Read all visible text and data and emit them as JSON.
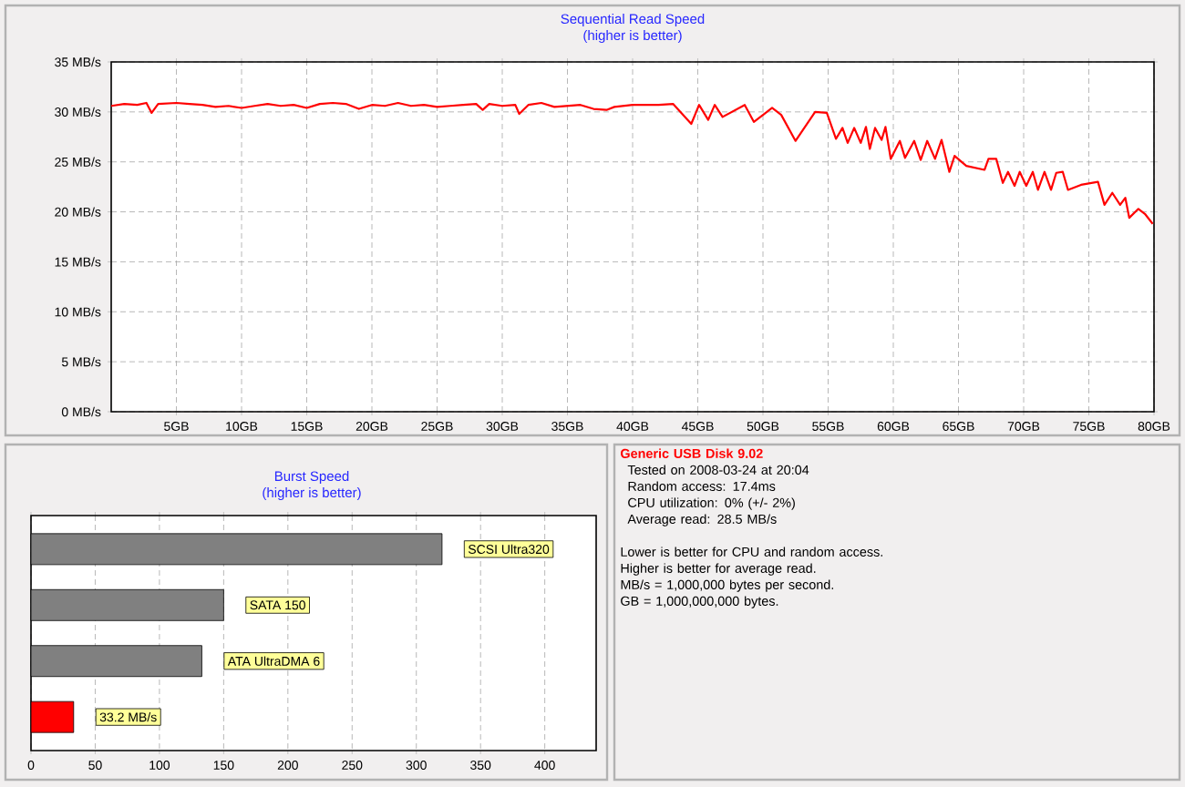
{
  "chart_data": [
    {
      "type": "line",
      "title": "Sequential Read Speed",
      "subtitle": "(higher is better)",
      "x": [
        0,
        1,
        2,
        2.7,
        3.1,
        3.6,
        5,
        6,
        7,
        8,
        9,
        10,
        11,
        12,
        13,
        14,
        15,
        16,
        17,
        18,
        19,
        20,
        21,
        22,
        23,
        24,
        25,
        26,
        27,
        28,
        28.5,
        29,
        30,
        31,
        31.3,
        32,
        33,
        34,
        35,
        36,
        37,
        38,
        38.6,
        40,
        42,
        43.1,
        44.5,
        45.1,
        45.8,
        46.3,
        46.9,
        48.6,
        49.3,
        50.3,
        50.7,
        51.4,
        52.5,
        54.0,
        54.9,
        55.6,
        56.1,
        56.5,
        57.0,
        57.5,
        57.9,
        58.2,
        58.6,
        59.1,
        59.4,
        59.8,
        60.5,
        60.9,
        61.6,
        62.1,
        62.6,
        63.2,
        63.7,
        64.3,
        64.7,
        65.6,
        67.0,
        67.3,
        67.9,
        68.4,
        68.8,
        69.3,
        69.7,
        70.2,
        70.7,
        71.1,
        71.6,
        72.1,
        72.5,
        73.0,
        73.4,
        74.4,
        75.7,
        76.2,
        76.8,
        77.4,
        77.8,
        78.1,
        78.8,
        79.3,
        79.9
      ],
      "series": [
        {
          "color": "#ff0000",
          "values": [
            30.6,
            30.8,
            30.7,
            30.9,
            29.9,
            30.8,
            30.9,
            30.8,
            30.7,
            30.5,
            30.6,
            30.4,
            30.6,
            30.8,
            30.6,
            30.7,
            30.4,
            30.8,
            30.9,
            30.8,
            30.3,
            30.7,
            30.6,
            30.9,
            30.6,
            30.7,
            30.5,
            30.6,
            30.7,
            30.8,
            30.2,
            30.8,
            30.6,
            30.7,
            29.8,
            30.7,
            30.9,
            30.5,
            30.6,
            30.7,
            30.3,
            30.2,
            30.5,
            30.7,
            30.7,
            30.8,
            28.8,
            30.7,
            29.2,
            30.7,
            29.5,
            30.7,
            29.0,
            30.0,
            30.4,
            29.7,
            27.1,
            30.0,
            29.9,
            27.3,
            28.4,
            26.9,
            28.4,
            26.9,
            28.5,
            26.3,
            28.4,
            27.2,
            28.5,
            25.3,
            27.1,
            25.4,
            27.1,
            25.2,
            27.1,
            25.3,
            27.2,
            24.0,
            25.6,
            24.6,
            24.2,
            25.3,
            25.3,
            22.9,
            24.0,
            22.6,
            24.0,
            22.6,
            24.0,
            22.2,
            24.0,
            22.2,
            23.9,
            24.0,
            22.2,
            22.7,
            23.0,
            20.7,
            21.9,
            20.7,
            21.4,
            19.4,
            20.3,
            19.8,
            18.8
          ]
        }
      ],
      "xlim": [
        0,
        80
      ],
      "ylim": [
        0,
        35
      ],
      "xticks": [
        {
          "value": 5,
          "label": "5GB"
        },
        {
          "value": 10,
          "label": "10GB"
        },
        {
          "value": 15,
          "label": "15GB"
        },
        {
          "value": 20,
          "label": "20GB"
        },
        {
          "value": 25,
          "label": "25GB"
        },
        {
          "value": 30,
          "label": "30GB"
        },
        {
          "value": 35,
          "label": "35GB"
        },
        {
          "value": 40,
          "label": "40GB"
        },
        {
          "value": 45,
          "label": "45GB"
        },
        {
          "value": 50,
          "label": "50GB"
        },
        {
          "value": 55,
          "label": "55GB"
        },
        {
          "value": 60,
          "label": "60GB"
        },
        {
          "value": 65,
          "label": "65GB"
        },
        {
          "value": 70,
          "label": "70GB"
        },
        {
          "value": 75,
          "label": "75GB"
        },
        {
          "value": 80,
          "label": "80GB"
        }
      ],
      "yticks": [
        {
          "value": 0,
          "label": "0 MB/s"
        },
        {
          "value": 5,
          "label": "5 MB/s"
        },
        {
          "value": 10,
          "label": "10 MB/s"
        },
        {
          "value": 15,
          "label": "15 MB/s"
        },
        {
          "value": 20,
          "label": "20 MB/s"
        },
        {
          "value": 25,
          "label": "25 MB/s"
        },
        {
          "value": 30,
          "label": "30 MB/s"
        },
        {
          "value": 35,
          "label": "35 MB/s"
        }
      ],
      "grid": true
    },
    {
      "type": "bar",
      "orientation": "horizontal",
      "title": "Burst Speed",
      "subtitle": "(higher is better)",
      "categories": [
        "SCSI Ultra320",
        "SATA 150",
        "ATA UltraDMA 6",
        null
      ],
      "values": [
        320,
        150,
        133,
        33.2
      ],
      "colors": [
        "#808080",
        "#808080",
        "#808080",
        "#ff0000"
      ],
      "value_labels": [
        null,
        null,
        null,
        "33.2 MB/s"
      ],
      "xlim": [
        0,
        440
      ],
      "xticks": [
        0,
        50,
        100,
        150,
        200,
        250,
        300,
        350,
        400
      ],
      "grid": "x"
    },
    {
      "type": "other",
      "title": "Generic USB Disk 9.02",
      "annotations": [
        "Tested on 2008-03-24 at 20:04",
        "Random access: 17.4ms",
        "CPU utilization: 0% (+/- 2%)",
        "Average read: 28.5 MB/s",
        "Lower is better for CPU and random access.",
        "Higher is better for average read.",
        "MB/s = 1,000,000 bytes per second.",
        "GB = 1,000,000,000 bytes."
      ]
    }
  ]
}
